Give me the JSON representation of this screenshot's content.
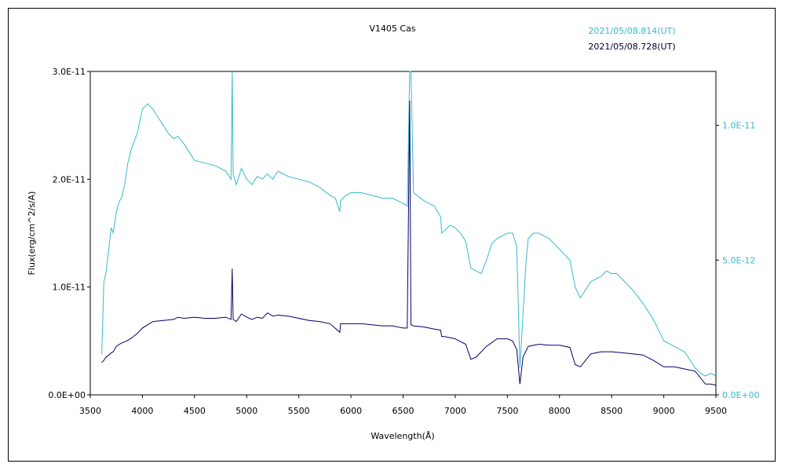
{
  "chart_data": {
    "type": "line",
    "title": "V1405 Cas",
    "xlabel": "Wavelength(Å)",
    "ylabel": "Flux(erg/cm^2/s/A)",
    "xlim": [
      3500,
      9500
    ],
    "ylim_left": [
      0,
      3e-11
    ],
    "ylim_right": [
      0,
      1.2e-11
    ],
    "x_ticks": [
      "3500",
      "4000",
      "4500",
      "5000",
      "5500",
      "6000",
      "6500",
      "7000",
      "7500",
      "8000",
      "8500",
      "9000",
      "9500"
    ],
    "y_ticks_left": [
      "0.0E+00",
      "1.0E-11",
      "2.0E-11",
      "3.0E-11"
    ],
    "y_ticks_right": [
      "0.0E+00",
      "5.0E-12",
      "1.0E-11"
    ],
    "grid": false,
    "legend_position": "top-right",
    "series": [
      {
        "name": "2021/05/08.814(UT)",
        "axis": "right",
        "color": "#33bbcc",
        "x": [
          3610,
          3630,
          3650,
          3680,
          3700,
          3720,
          3750,
          3780,
          3800,
          3830,
          3860,
          3900,
          3950,
          4000,
          4050,
          4100,
          4150,
          4200,
          4250,
          4300,
          4340,
          4400,
          4500,
          4600,
          4700,
          4800,
          4850,
          4861,
          4870,
          4900,
          4950,
          5000,
          5050,
          5100,
          5150,
          5200,
          5250,
          5300,
          5350,
          5400,
          5500,
          5600,
          5700,
          5800,
          5850,
          5893,
          5900,
          5950,
          6000,
          6100,
          6200,
          6300,
          6400,
          6500,
          6540,
          6563,
          6575,
          6600,
          6700,
          6800,
          6860,
          6870,
          6900,
          6950,
          7000,
          7050,
          7100,
          7150,
          7200,
          7250,
          7300,
          7350,
          7400,
          7450,
          7500,
          7550,
          7590,
          7620,
          7650,
          7680,
          7700,
          7750,
          7800,
          7850,
          7900,
          7950,
          8000,
          8100,
          8150,
          8200,
          8300,
          8400,
          8450,
          8500,
          8550,
          8600,
          8700,
          8800,
          8900,
          9000,
          9100,
          9200,
          9300,
          9350,
          9400,
          9450,
          9500
        ],
        "y": [
          1.5e-12,
          4.2e-12,
          4.5e-12,
          5.5e-12,
          6.2e-12,
          6e-12,
          6.8e-12,
          7.2e-12,
          7.3e-12,
          7.8e-12,
          8.6e-12,
          9.2e-12,
          9.7e-12,
          1.06e-11,
          1.08e-11,
          1.06e-11,
          1.03e-11,
          1e-11,
          9.7e-12,
          9.5e-12,
          9.6e-12,
          9.3e-12,
          8.7e-12,
          8.6e-12,
          8.5e-12,
          8.3e-12,
          8e-12,
          1.2e-11,
          8.2e-12,
          7.8e-12,
          8.4e-12,
          8e-12,
          7.8e-12,
          8.1e-12,
          8e-12,
          8.2e-12,
          8e-12,
          8.3e-12,
          8.2e-12,
          8.1e-12,
          8e-12,
          7.9e-12,
          7.7e-12,
          7.4e-12,
          7.3e-12,
          6.8e-12,
          7.2e-12,
          7.4e-12,
          7.5e-12,
          7.5e-12,
          7.4e-12,
          7.3e-12,
          7.3e-12,
          7.1e-12,
          7e-12,
          1.2e-11,
          1.2e-11,
          7.5e-12,
          7.2e-12,
          7e-12,
          6.6e-12,
          6e-12,
          6.1e-12,
          6.3e-12,
          6.2e-12,
          6e-12,
          5.7e-12,
          4.7e-12,
          4.6e-12,
          4.5e-12,
          5e-12,
          5.6e-12,
          5.8e-12,
          5.9e-12,
          6e-12,
          6e-12,
          5.5e-12,
          1e-12,
          3e-12,
          5e-12,
          5.8e-12,
          6e-12,
          6e-12,
          5.9e-12,
          5.8e-12,
          5.6e-12,
          5.4e-12,
          5e-12,
          4e-12,
          3.6e-12,
          4.2e-12,
          4.4e-12,
          4.6e-12,
          4.5e-12,
          4.5e-12,
          4.3e-12,
          3.9e-12,
          3.4e-12,
          2.8e-12,
          2e-12,
          1.8e-12,
          1.6e-12,
          1e-12,
          8e-13,
          7e-13,
          8e-13,
          7e-13
        ]
      },
      {
        "name": "2021/05/08.728(UT)",
        "axis": "left",
        "color": "#000066",
        "x": [
          3610,
          3630,
          3650,
          3680,
          3700,
          3720,
          3750,
          3780,
          3800,
          3850,
          3900,
          3950,
          4000,
          4100,
          4200,
          4300,
          4340,
          4400,
          4500,
          4600,
          4700,
          4800,
          4850,
          4861,
          4870,
          4900,
          4950,
          5000,
          5050,
          5100,
          5150,
          5200,
          5250,
          5300,
          5400,
          5500,
          5600,
          5700,
          5800,
          5893,
          5900,
          6000,
          6100,
          6200,
          6300,
          6400,
          6500,
          6540,
          6563,
          6575,
          6600,
          6700,
          6800,
          6860,
          6870,
          6900,
          7000,
          7100,
          7150,
          7200,
          7300,
          7400,
          7500,
          7550,
          7590,
          7620,
          7650,
          7700,
          7800,
          7900,
          8000,
          8100,
          8150,
          8200,
          8300,
          8400,
          8500,
          8600,
          8700,
          8800,
          8900,
          9000,
          9100,
          9200,
          9300,
          9400,
          9450,
          9500
        ],
        "y": [
          3e-12,
          3.2e-12,
          3.5e-12,
          3.7e-12,
          3.9e-12,
          4e-12,
          4.5e-12,
          4.7e-12,
          4.8e-12,
          5e-12,
          5.3e-12,
          5.7e-12,
          6.2e-12,
          6.8e-12,
          6.9e-12,
          7e-12,
          7.2e-12,
          7.1e-12,
          7.2e-12,
          7.1e-12,
          7.1e-12,
          7.2e-12,
          7e-12,
          1.17e-11,
          7e-12,
          6.8e-12,
          7.5e-12,
          7.2e-12,
          7e-12,
          7.2e-12,
          7.1e-12,
          7.6e-12,
          7.3e-12,
          7.4e-12,
          7.3e-12,
          7.1e-12,
          6.9e-12,
          6.8e-12,
          6.6e-12,
          5.8e-12,
          6.6e-12,
          6.6e-12,
          6.6e-12,
          6.5e-12,
          6.4e-12,
          6.4e-12,
          6.2e-12,
          6.2e-12,
          2.73e-11,
          6.5e-12,
          6.4e-12,
          6.3e-12,
          6.1e-12,
          6e-12,
          5.4e-12,
          5.4e-12,
          5.2e-12,
          4.7e-12,
          3.3e-12,
          3.5e-12,
          4.5e-12,
          5.2e-12,
          5.2e-12,
          5e-12,
          4.2e-12,
          1e-12,
          3.5e-12,
          4.5e-12,
          4.7e-12,
          4.6e-12,
          4.6e-12,
          4.4e-12,
          2.8e-12,
          2.6e-12,
          3.8e-12,
          4e-12,
          4e-12,
          3.9e-12,
          3.8e-12,
          3.7e-12,
          3.2e-12,
          2.6e-12,
          2.6e-12,
          2.4e-12,
          2.2e-12,
          1e-12,
          1e-12,
          9e-13
        ]
      }
    ]
  }
}
